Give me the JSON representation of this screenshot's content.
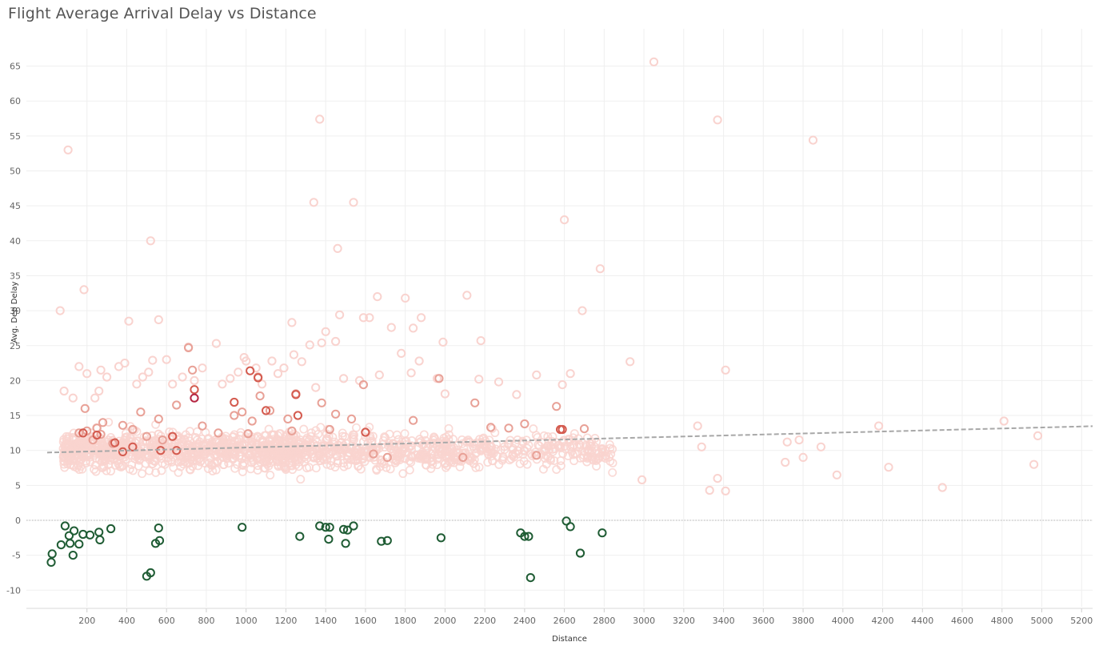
{
  "chart_data": {
    "type": "scatter",
    "title": "Flight Average Arrival Delay vs Distance",
    "xlabel": "Distance",
    "ylabel": "Avg. Dep Delay",
    "xlim": [
      0,
      5300
    ],
    "ylim": [
      -13,
      70
    ],
    "x_ticks": [
      200,
      400,
      600,
      800,
      1000,
      1200,
      1400,
      1600,
      1800,
      2000,
      2200,
      2400,
      2600,
      2800,
      3000,
      3200,
      3400,
      3600,
      3800,
      4000,
      4200,
      4400,
      4600,
      4800,
      5000,
      5200
    ],
    "y_ticks": [
      -10,
      -5,
      0,
      5,
      10,
      15,
      20,
      25,
      30,
      35,
      40,
      45,
      50,
      55,
      60,
      65
    ],
    "grid": true,
    "zero_line": true,
    "trend_line": {
      "start": [
        0,
        9.7
      ],
      "end": [
        5300,
        13.5
      ],
      "color": "#a8a8a8",
      "style": "dashed"
    },
    "colors": {
      "negative": "#1f5c34",
      "light": "#f9d3cf",
      "medium": "#e8a197",
      "strong": "#d45b4f",
      "darkest": "#b52541"
    },
    "series": [
      {
        "color": "#1f5c34",
        "points": [
          [
            20,
            -6.0
          ],
          [
            25,
            -4.8
          ],
          [
            70,
            -3.5
          ],
          [
            90,
            -0.8
          ],
          [
            110,
            -2.2
          ],
          [
            115,
            -3.3
          ],
          [
            130,
            -5.0
          ],
          [
            135,
            -1.5
          ],
          [
            160,
            -3.4
          ],
          [
            180,
            -2.0
          ],
          [
            215,
            -2.1
          ],
          [
            260,
            -1.7
          ],
          [
            265,
            -2.8
          ],
          [
            320,
            -1.2
          ],
          [
            500,
            -8.0
          ],
          [
            520,
            -7.5
          ],
          [
            545,
            -3.3
          ],
          [
            560,
            -1.1
          ],
          [
            565,
            -2.9
          ],
          [
            980,
            -1.0
          ],
          [
            1270,
            -2.3
          ],
          [
            1370,
            -0.8
          ],
          [
            1400,
            -1.0
          ],
          [
            1415,
            -2.7
          ],
          [
            1420,
            -1.0
          ],
          [
            1490,
            -1.3
          ],
          [
            1500,
            -3.3
          ],
          [
            1510,
            -1.4
          ],
          [
            1540,
            -0.8
          ],
          [
            1680,
            -3.0
          ],
          [
            1710,
            -2.9
          ],
          [
            1980,
            -2.5
          ],
          [
            2380,
            -1.8
          ],
          [
            2400,
            -2.3
          ],
          [
            2420,
            -2.3
          ],
          [
            2430,
            -8.2
          ],
          [
            2610,
            -0.1
          ],
          [
            2630,
            -0.9
          ],
          [
            2680,
            -4.7
          ],
          [
            2790,
            -1.8
          ]
        ]
      },
      {
        "color": "#f9d3cf",
        "points": [
          [
            65,
            30.0
          ],
          [
            85,
            18.5
          ],
          [
            105,
            53.0
          ],
          [
            130,
            17.5
          ],
          [
            160,
            22.0
          ],
          [
            185,
            33.0
          ],
          [
            200,
            21.0
          ],
          [
            240,
            17.5
          ],
          [
            260,
            18.5
          ],
          [
            270,
            21.5
          ],
          [
            300,
            20.5
          ],
          [
            360,
            22.0
          ],
          [
            390,
            22.5
          ],
          [
            410,
            28.5
          ],
          [
            450,
            19.5
          ],
          [
            480,
            20.5
          ],
          [
            510,
            21.2
          ],
          [
            520,
            40.0
          ],
          [
            530,
            22.9
          ],
          [
            560,
            28.7
          ],
          [
            600,
            23.0
          ],
          [
            630,
            19.5
          ],
          [
            680,
            20.5
          ],
          [
            710,
            24.8
          ],
          [
            740,
            20.0
          ],
          [
            780,
            21.8
          ],
          [
            850,
            25.3
          ],
          [
            880,
            19.5
          ],
          [
            920,
            20.3
          ],
          [
            960,
            21.2
          ],
          [
            990,
            23.3
          ],
          [
            1000,
            22.8
          ],
          [
            1050,
            21.8
          ],
          [
            1080,
            19.5
          ],
          [
            1130,
            22.8
          ],
          [
            1160,
            21.0
          ],
          [
            1190,
            21.8
          ],
          [
            1230,
            28.3
          ],
          [
            1240,
            23.7
          ],
          [
            1280,
            22.7
          ],
          [
            1320,
            25.1
          ],
          [
            1340,
            45.5
          ],
          [
            1350,
            19.0
          ],
          [
            1370,
            57.4
          ],
          [
            1380,
            25.4
          ],
          [
            1400,
            27.0
          ],
          [
            1450,
            25.6
          ],
          [
            1460,
            38.9
          ],
          [
            1470,
            29.4
          ],
          [
            1490,
            20.3
          ],
          [
            1540,
            45.5
          ],
          [
            1570,
            20.0
          ],
          [
            1590,
            29.0
          ],
          [
            1620,
            29.0
          ],
          [
            1660,
            32.0
          ],
          [
            1670,
            20.8
          ],
          [
            1730,
            27.6
          ],
          [
            1780,
            23.9
          ],
          [
            1800,
            31.8
          ],
          [
            1830,
            21.1
          ],
          [
            1840,
            27.5
          ],
          [
            1870,
            22.8
          ],
          [
            1880,
            29.0
          ],
          [
            1960,
            20.3
          ],
          [
            1990,
            25.5
          ],
          [
            2000,
            18.1
          ],
          [
            2110,
            32.2
          ],
          [
            2170,
            20.2
          ],
          [
            2180,
            25.7
          ],
          [
            2270,
            19.8
          ],
          [
            2360,
            18.0
          ],
          [
            2460,
            20.8
          ],
          [
            2590,
            19.4
          ],
          [
            2600,
            43.0
          ],
          [
            2630,
            21.0
          ],
          [
            2690,
            30.0
          ],
          [
            2780,
            36.0
          ],
          [
            2930,
            22.7
          ],
          [
            2990,
            5.8
          ],
          [
            3050,
            65.6
          ],
          [
            3270,
            13.5
          ],
          [
            3290,
            10.5
          ],
          [
            3330,
            4.3
          ],
          [
            3370,
            6.0
          ],
          [
            3370,
            57.3
          ],
          [
            3410,
            4.2
          ],
          [
            3410,
            21.5
          ],
          [
            3710,
            8.3
          ],
          [
            3720,
            11.2
          ],
          [
            3780,
            11.5
          ],
          [
            3800,
            9.0
          ],
          [
            3850,
            54.4
          ],
          [
            3890,
            10.5
          ],
          [
            3970,
            6.5
          ],
          [
            4180,
            13.5
          ],
          [
            4230,
            7.6
          ],
          [
            4500,
            4.7
          ],
          [
            4810,
            14.2
          ],
          [
            4960,
            8.0
          ],
          [
            4980,
            12.1
          ]
        ]
      },
      {
        "color": "#e8a197",
        "points": [
          [
            160,
            12.5
          ],
          [
            190,
            16.0
          ],
          [
            200,
            12.8
          ],
          [
            230,
            11.5
          ],
          [
            250,
            13.2
          ],
          [
            270,
            12.3
          ],
          [
            280,
            14.0
          ],
          [
            330,
            11.0
          ],
          [
            380,
            13.6
          ],
          [
            430,
            13.0
          ],
          [
            470,
            15.5
          ],
          [
            500,
            12.0
          ],
          [
            560,
            14.5
          ],
          [
            580,
            11.5
          ],
          [
            650,
            16.5
          ],
          [
            710,
            24.7
          ],
          [
            730,
            21.5
          ],
          [
            780,
            13.5
          ],
          [
            860,
            12.5
          ],
          [
            940,
            15.0
          ],
          [
            980,
            15.5
          ],
          [
            1010,
            12.4
          ],
          [
            1030,
            14.2
          ],
          [
            1060,
            20.5
          ],
          [
            1070,
            17.8
          ],
          [
            1120,
            15.7
          ],
          [
            1210,
            14.5
          ],
          [
            1230,
            12.8
          ],
          [
            1250,
            18.1
          ],
          [
            1380,
            16.8
          ],
          [
            1420,
            13.0
          ],
          [
            1450,
            15.2
          ],
          [
            1530,
            14.5
          ],
          [
            1590,
            19.4
          ],
          [
            1640,
            9.5
          ],
          [
            1710,
            9.0
          ],
          [
            1840,
            14.3
          ],
          [
            1970,
            20.3
          ],
          [
            2090,
            9.0
          ],
          [
            2150,
            16.8
          ],
          [
            2230,
            13.3
          ],
          [
            2320,
            13.2
          ],
          [
            2400,
            13.8
          ],
          [
            2460,
            9.3
          ],
          [
            2560,
            16.3
          ],
          [
            2700,
            13.1
          ]
        ]
      },
      {
        "color": "#d45b4f",
        "points": [
          [
            180,
            12.5
          ],
          [
            250,
            12.2
          ],
          [
            340,
            11.1
          ],
          [
            380,
            9.8
          ],
          [
            430,
            10.5
          ],
          [
            570,
            10.0
          ],
          [
            630,
            12.0
          ],
          [
            650,
            10.0
          ],
          [
            740,
            18.7
          ],
          [
            940,
            16.9
          ],
          [
            1020,
            21.4
          ],
          [
            1060,
            20.4
          ],
          [
            1100,
            15.7
          ],
          [
            1250,
            18.0
          ],
          [
            1260,
            15.0
          ],
          [
            1600,
            12.6
          ],
          [
            2580,
            13.0
          ],
          [
            2590,
            13.0
          ]
        ]
      },
      {
        "color": "#b52541",
        "points": [
          [
            740,
            17.5
          ]
        ]
      }
    ]
  }
}
